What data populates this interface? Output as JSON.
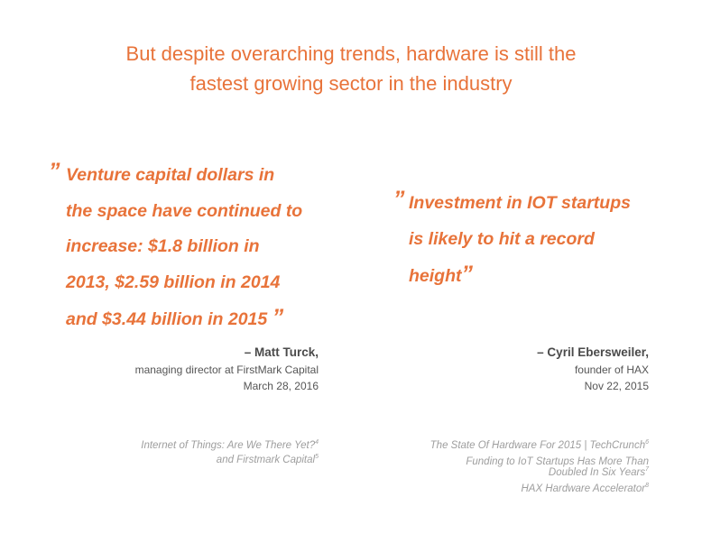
{
  "headline": {
    "line1": "But despite overarching trends, hardware is still the",
    "line2": "fastest growing sector in the industry"
  },
  "quote_left": {
    "open_mark": "”",
    "lines": [
      "Venture capital dollars in",
      "the space have continued to",
      "increase: $1.8 billion in",
      "2013, $2.59 billion in 2014",
      "and $3.44 billion in 2015"
    ],
    "close_mark": "”",
    "author": "– Matt Turck,",
    "role": "managing director at FirstMark Capital",
    "date": "March 28, 2016"
  },
  "quote_right": {
    "open_mark": "”",
    "lines": [
      "Investment in IOT startups",
      "is likely to hit a record",
      "height"
    ],
    "close_mark": "”",
    "author": "– Cyril Ebersweiler,",
    "role": "founder of HAX",
    "date": "Nov 22, 2015"
  },
  "sources_left": [
    {
      "text": "Internet of Things: Are We There Yet?",
      "ref": "4"
    },
    {
      "text": "and Firstmark Capital",
      "ref": "5"
    }
  ],
  "sources_right": [
    {
      "text": "The State Of Hardware For 2015 | TechCrunch",
      "ref": "6"
    },
    {
      "text": "Funding to IoT Startups Has More Than",
      "ref": ""
    },
    {
      "text": "Doubled In Six Years",
      "ref": "7"
    },
    {
      "text": "HAX Hardware Accelerator",
      "ref": "8"
    }
  ],
  "colors": {
    "accent": "#e8733a",
    "text": "#555555",
    "muted": "#9e9e9e"
  }
}
